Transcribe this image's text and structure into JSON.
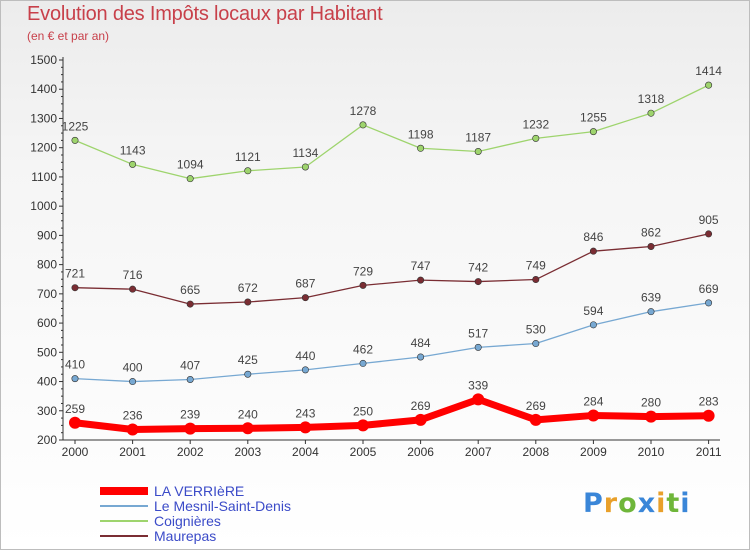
{
  "chart_data": {
    "type": "line",
    "title": "Evolution des Impôts locaux par Habitant",
    "subtitle": "(en € et par an)",
    "xlabel": "",
    "ylabel": "",
    "x": [
      "2000",
      "2001",
      "2002",
      "2003",
      "2004",
      "2005",
      "2006",
      "2007",
      "2008",
      "2009",
      "2010",
      "2011"
    ],
    "ylim": [
      200,
      1500
    ],
    "yticks": [
      200,
      300,
      400,
      500,
      600,
      700,
      800,
      900,
      1000,
      1100,
      1200,
      1300,
      1400,
      1500
    ],
    "grid": false,
    "legend_position": "bottom-left",
    "series": [
      {
        "name": "LA VERRIèRE",
        "color": "#ff0000",
        "values": [
          259,
          236,
          239,
          240,
          243,
          250,
          269,
          339,
          269,
          284,
          280,
          283
        ]
      },
      {
        "name": "Le Mesnil-Saint-Denis",
        "color": "#77a8d2",
        "values": [
          410,
          400,
          407,
          425,
          440,
          462,
          484,
          517,
          530,
          594,
          639,
          669
        ]
      },
      {
        "name": "Coignières",
        "color": "#9ed46d",
        "values": [
          1225,
          1143,
          1094,
          1121,
          1134,
          1278,
          1198,
          1187,
          1232,
          1255,
          1318,
          1414
        ]
      },
      {
        "name": "Maurepas",
        "color": "#7a2d33",
        "values": [
          721,
          716,
          665,
          672,
          687,
          729,
          747,
          742,
          749,
          846,
          862,
          905
        ]
      }
    ]
  },
  "logo": {
    "letters": [
      "P",
      "r",
      "o",
      "x",
      "i",
      "t",
      "i"
    ],
    "colors": [
      "#3a86d8",
      "#e9a02a",
      "#6fb63a",
      "#3a86d8",
      "#e9a02a",
      "#6fb63a",
      "#3a86d8"
    ]
  }
}
